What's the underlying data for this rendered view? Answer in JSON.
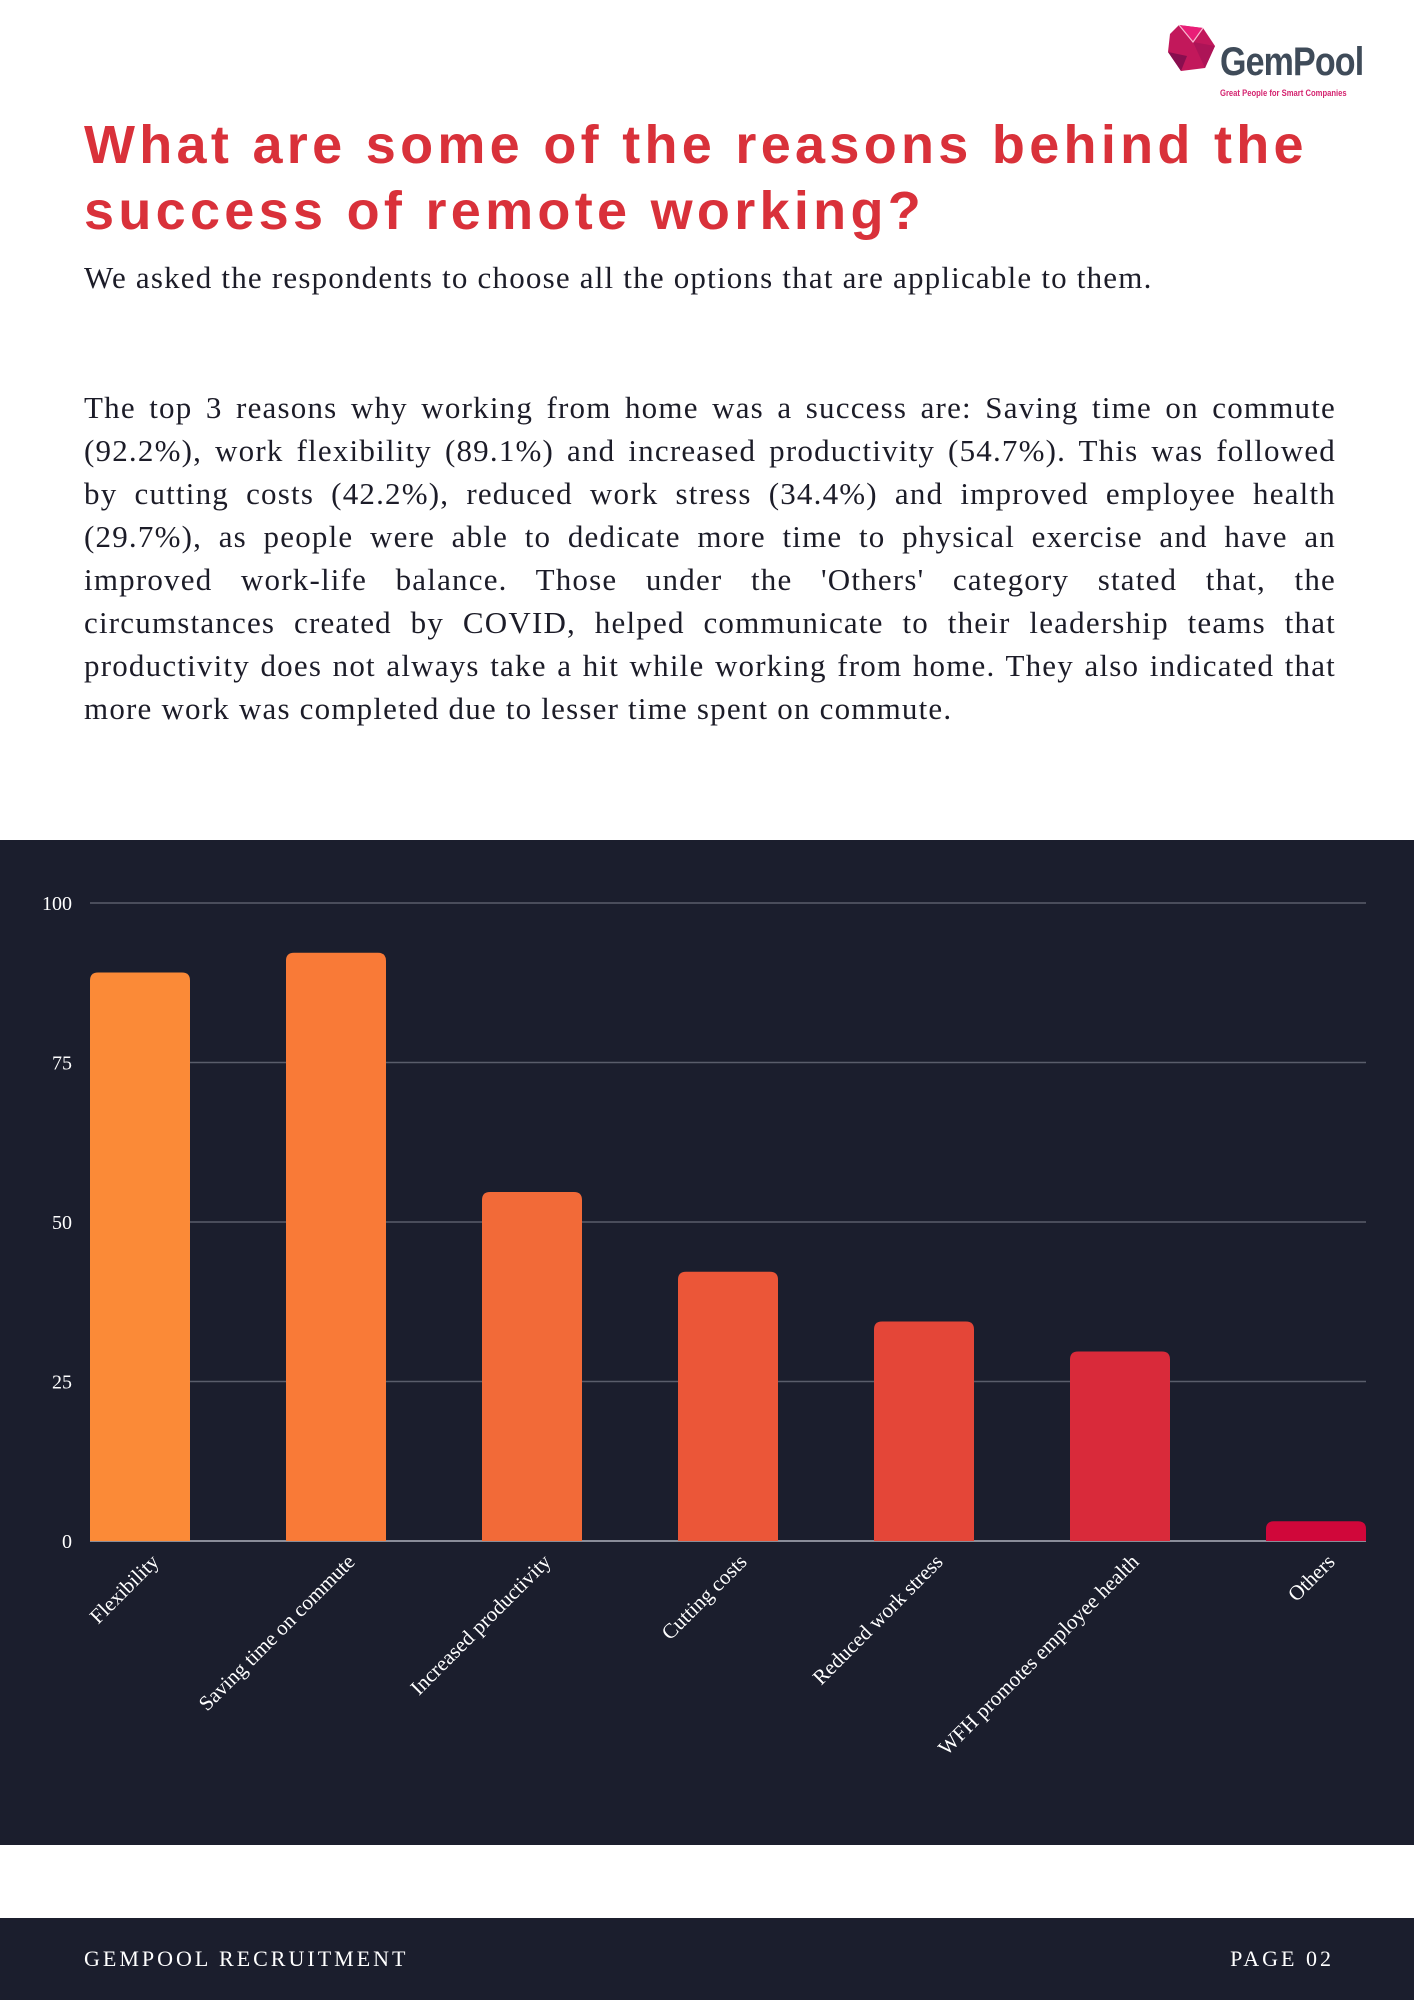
{
  "brand": {
    "name": "GemPool",
    "tagline": "Great People for Smart Companies",
    "logo_icon": "gem-polyhedron-icon",
    "colors": {
      "title": "#d9313a",
      "panel": "#1b1e2d",
      "logo": "#3f4b59",
      "logo_accent": "#d4236f"
    }
  },
  "title": "What are some of the reasons behind the success of remote working?",
  "intro": "We asked the respondents to choose all the options that are applicable to them.",
  "body": "The top 3 reasons why working from home was a success are: Saving time on commute (92.2%), work flexibility (89.1%) and increased productivity (54.7%). This was followed by cutting costs (42.2%), reduced work stress (34.4%) and improved employee health (29.7%), as people were able to dedicate more time to physical exercise and have an improved work-life balance. Those under the 'Others' category stated that, the circumstances created by COVID, helped communicate to their leadership teams that productivity does not always take a hit while working from home. They also indicated that more work was completed due to lesser time spent on commute.",
  "chart_data": {
    "type": "bar",
    "categories": [
      "Flexibility",
      "Saving time on commute",
      "Increased productivity",
      "Cutting costs",
      "Reduced work stress",
      "WFH promotes employee health",
      "Others"
    ],
    "values": [
      89.1,
      92.2,
      54.7,
      42.2,
      34.4,
      29.7,
      3.1
    ],
    "colors": [
      "#fb8a37",
      "#f97a37",
      "#f26a38",
      "#eb5638",
      "#e44638",
      "#d92a3a",
      "#d0073a"
    ],
    "ylim": [
      0,
      100
    ],
    "yticks": [
      "0",
      "25",
      "50",
      "75",
      "100"
    ],
    "grid": true,
    "title": "",
    "xlabel": "",
    "ylabel": ""
  },
  "footer": {
    "left": "GEMPOOL RECRUITMENT",
    "right": "PAGE 02"
  }
}
